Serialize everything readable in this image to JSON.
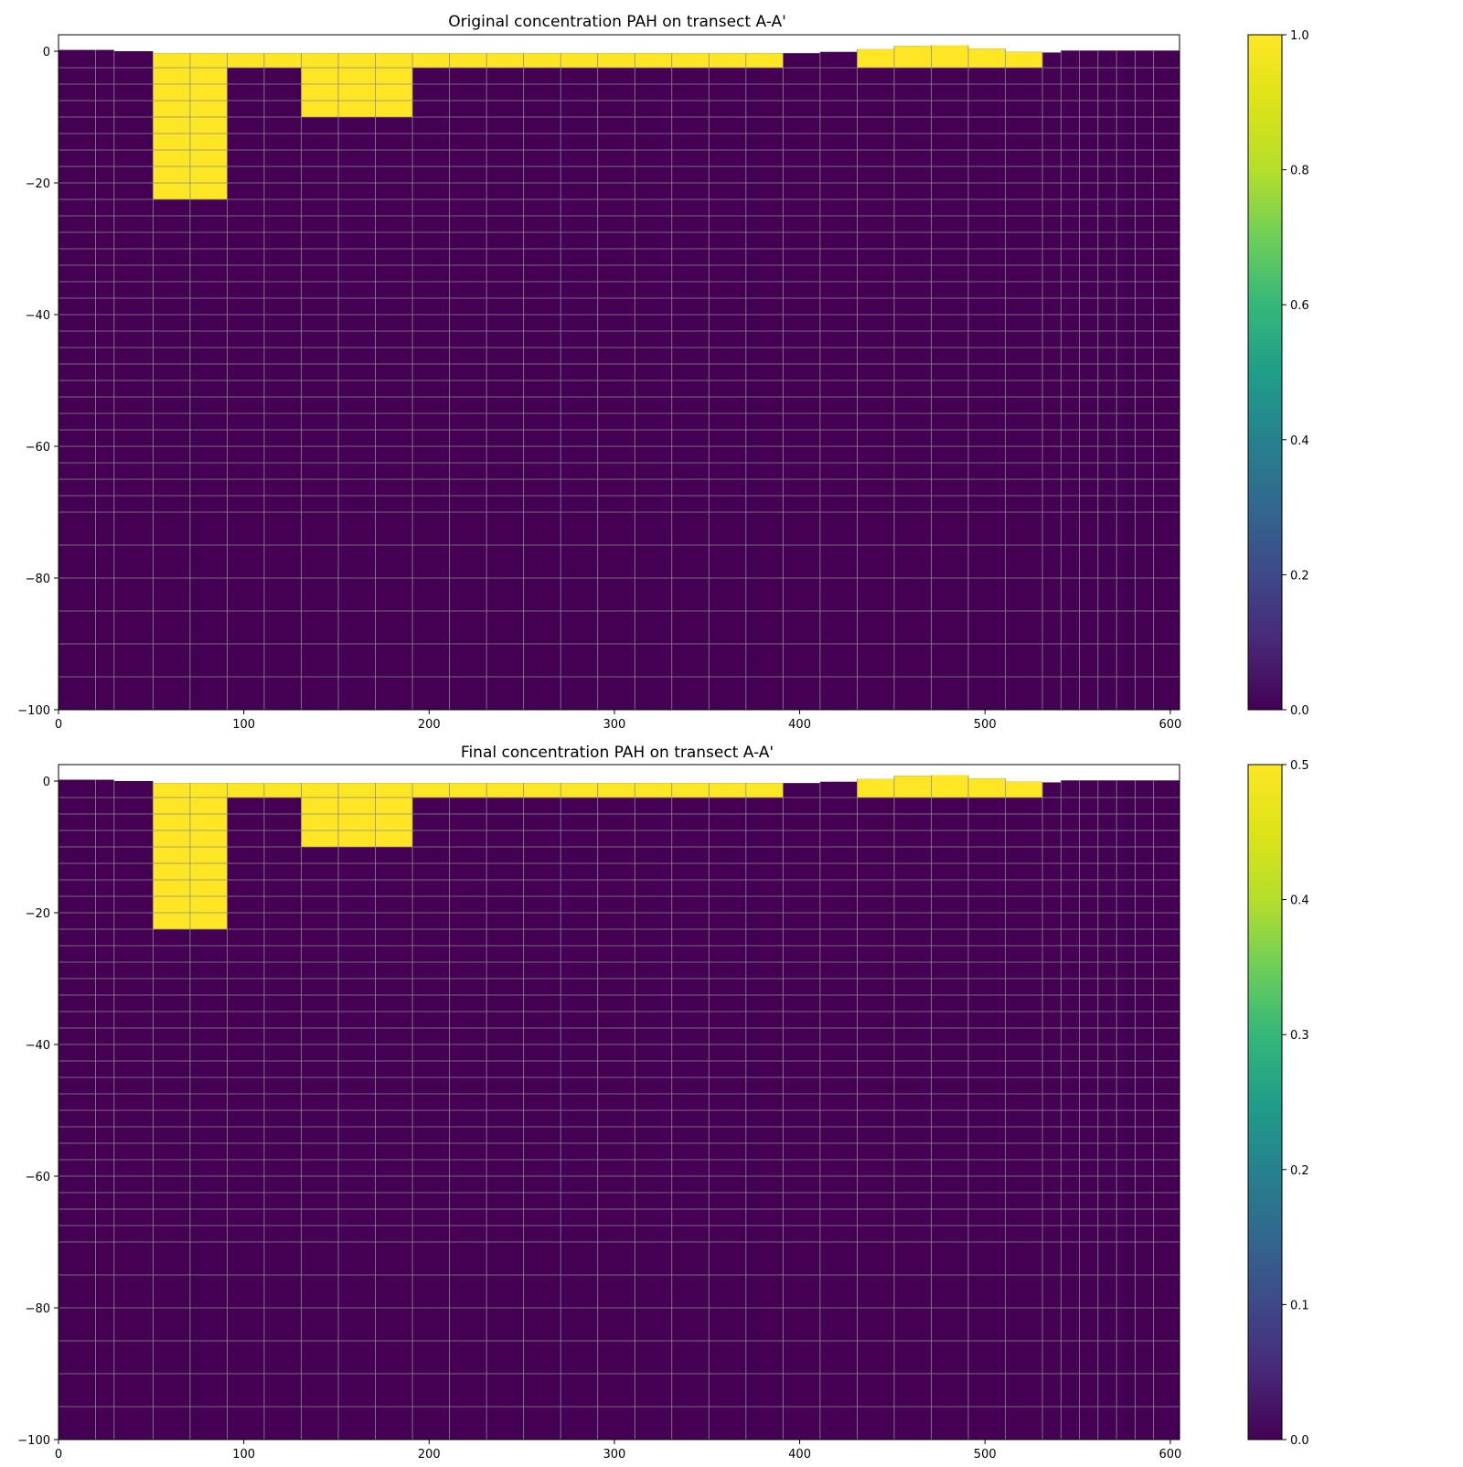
{
  "chart_data": [
    {
      "type": "heatmap",
      "title": "Original concentration PAH on transect A-A'",
      "xlabel": "",
      "ylabel": "",
      "xlim": [
        0,
        605
      ],
      "ylim": [
        -100,
        2.5
      ],
      "x_ticks": [
        0,
        100,
        200,
        300,
        400,
        500,
        600
      ],
      "y_ticks": [
        0,
        -20,
        -40,
        -60,
        -80,
        -100
      ],
      "colormap": "viridis",
      "colorbar": {
        "min": 0.0,
        "max": 1.0,
        "ticks": [
          0.0,
          0.2,
          0.4,
          0.6,
          0.8,
          1.0
        ],
        "tick_labels": [
          "0.0",
          "0.2",
          "0.4",
          "0.6",
          "0.8",
          "1.0"
        ]
      },
      "grid": true,
      "column_edges": [
        0,
        20,
        30,
        51,
        71,
        91,
        111,
        131,
        151,
        171,
        191,
        211,
        231,
        251,
        271,
        291,
        311,
        331,
        351,
        371,
        391,
        411,
        431,
        451,
        471,
        491,
        511,
        531,
        541,
        551,
        561,
        571,
        581,
        591,
        605
      ],
      "surface": [
        0.2,
        0.2,
        0.0,
        -0.3,
        -0.3,
        -0.3,
        -0.3,
        -0.3,
        -0.3,
        -0.3,
        -0.3,
        -0.3,
        -0.3,
        -0.3,
        -0.3,
        -0.3,
        -0.3,
        -0.3,
        -0.3,
        -0.3,
        -0.3,
        -0.1,
        0.3,
        0.8,
        0.9,
        0.4,
        -0.1,
        -0.2,
        0.1,
        0.1,
        0.1,
        0.1,
        0.1,
        0.1
      ],
      "layer_bottoms": [
        -2.5,
        -5,
        -7.5,
        -10,
        -12.5,
        -15,
        -17.5,
        -20,
        -22.5,
        -25,
        -27.5,
        -30,
        -32.5,
        -35,
        -37.5,
        -40,
        -42.5,
        -45,
        -47.5,
        -50,
        -52.5,
        -55,
        -57.5,
        -60,
        -62.5,
        -65,
        -67.5,
        -70,
        -75,
        -80,
        -85,
        -90,
        -95,
        -100
      ],
      "contaminated_zones": [
        {
          "x0": 51,
          "x1": 91,
          "top": -0.3,
          "bottom": -22.5,
          "value": 1.0
        },
        {
          "x0": 91,
          "x1": 131,
          "top": -0.3,
          "bottom": -2.5,
          "value": 1.0
        },
        {
          "x0": 131,
          "x1": 191,
          "top": -0.3,
          "bottom": -10,
          "value": 1.0
        },
        {
          "x0": 191,
          "x1": 391,
          "top": -0.3,
          "bottom": -2.5,
          "value": 1.0
        },
        {
          "x0": 431,
          "x1": 531,
          "top": "surface",
          "bottom": -2.5,
          "value": 1.0
        }
      ],
      "background_value": 0.0
    },
    {
      "type": "heatmap",
      "title": "Final concentration PAH on transect A-A'",
      "xlabel": "",
      "ylabel": "",
      "xlim": [
        0,
        605
      ],
      "ylim": [
        -100,
        2.5
      ],
      "x_ticks": [
        0,
        100,
        200,
        300,
        400,
        500,
        600
      ],
      "y_ticks": [
        0,
        -20,
        -40,
        -60,
        -80,
        -100
      ],
      "colormap": "viridis",
      "colorbar": {
        "min": 0.0,
        "max": 0.5,
        "ticks": [
          0.0,
          0.1,
          0.2,
          0.3,
          0.4,
          0.5
        ],
        "tick_labels": [
          "0.0",
          "0.1",
          "0.2",
          "0.3",
          "0.4",
          "0.5"
        ]
      },
      "grid": true,
      "column_edges": [
        0,
        20,
        30,
        51,
        71,
        91,
        111,
        131,
        151,
        171,
        191,
        211,
        231,
        251,
        271,
        291,
        311,
        331,
        351,
        371,
        391,
        411,
        431,
        451,
        471,
        491,
        511,
        531,
        541,
        551,
        561,
        571,
        581,
        591,
        605
      ],
      "surface": [
        0.2,
        0.2,
        0.0,
        -0.3,
        -0.3,
        -0.3,
        -0.3,
        -0.3,
        -0.3,
        -0.3,
        -0.3,
        -0.3,
        -0.3,
        -0.3,
        -0.3,
        -0.3,
        -0.3,
        -0.3,
        -0.3,
        -0.3,
        -0.3,
        -0.1,
        0.3,
        0.8,
        0.9,
        0.4,
        -0.1,
        -0.2,
        0.1,
        0.1,
        0.1,
        0.1,
        0.1,
        0.1
      ],
      "layer_bottoms": [
        -2.5,
        -5,
        -7.5,
        -10,
        -12.5,
        -15,
        -17.5,
        -20,
        -22.5,
        -25,
        -27.5,
        -30,
        -32.5,
        -35,
        -37.5,
        -40,
        -42.5,
        -45,
        -47.5,
        -50,
        -52.5,
        -55,
        -57.5,
        -60,
        -62.5,
        -65,
        -67.5,
        -70,
        -75,
        -80,
        -85,
        -90,
        -95,
        -100
      ],
      "contaminated_zones": [
        {
          "x0": 51,
          "x1": 91,
          "top": -0.3,
          "bottom": -22.5,
          "value": 0.5
        },
        {
          "x0": 91,
          "x1": 131,
          "top": -0.3,
          "bottom": -2.5,
          "value": 0.5
        },
        {
          "x0": 131,
          "x1": 191,
          "top": -0.3,
          "bottom": -10,
          "value": 0.5
        },
        {
          "x0": 191,
          "x1": 391,
          "top": -0.3,
          "bottom": -2.5,
          "value": 0.5
        },
        {
          "x0": 431,
          "x1": 531,
          "top": "surface",
          "bottom": -2.5,
          "value": 0.5
        }
      ],
      "background_value": 0.0
    }
  ],
  "colors": {
    "low": "#440154",
    "high": "#fde725",
    "gridline": "#8c8c8c"
  }
}
